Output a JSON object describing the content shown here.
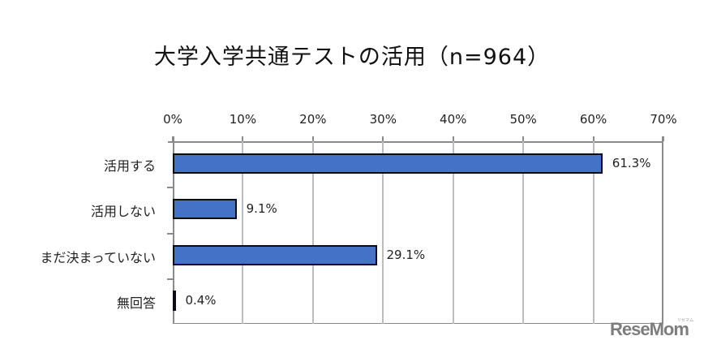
{
  "title": "大学入学共通テストの活用（n=964）",
  "chart_data": {
    "type": "bar",
    "orientation": "horizontal",
    "title": "大学入学共通テストの活用（n=964）",
    "categories": [
      "活用する",
      "活用しない",
      "まだ決まっていない",
      "無回答"
    ],
    "values": [
      61.3,
      9.1,
      29.1,
      0.4
    ],
    "value_labels": [
      "61.3%",
      "9.1%",
      "29.1%",
      "0.4%"
    ],
    "xlabel": "",
    "ylabel": "",
    "xlim": [
      0,
      70
    ],
    "x_ticks": [
      "0%",
      "10%",
      "20%",
      "30%",
      "40%",
      "50%",
      "60%",
      "70%"
    ],
    "x_axis_position": "top",
    "grid": true,
    "legend": null,
    "bar_color": "#4472c4",
    "bar_border_color": "#0a0a1a"
  },
  "watermark": {
    "text": "ReseMom",
    "small_text": "リセマム"
  }
}
